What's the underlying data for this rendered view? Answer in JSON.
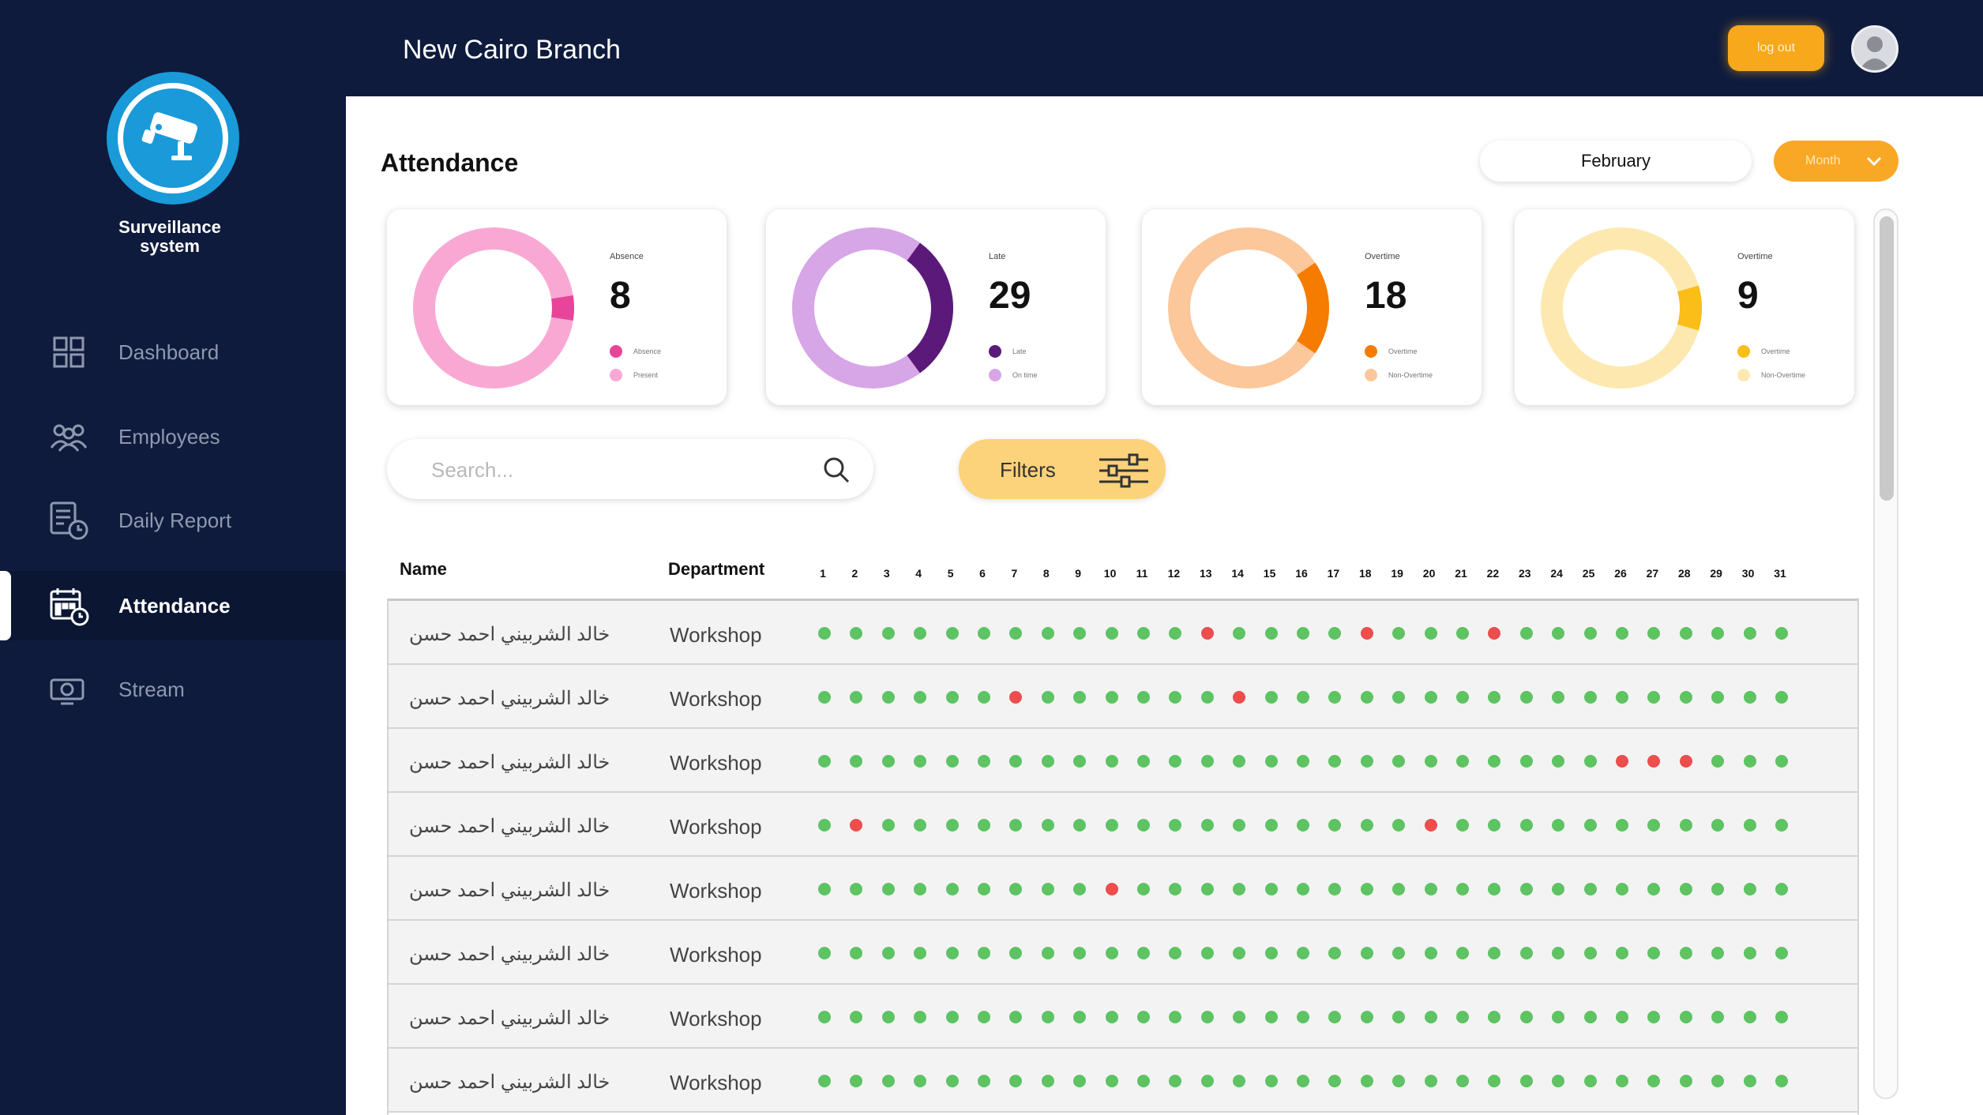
{
  "brand": {
    "name": "Surveillance system",
    "logo_icon": "security-camera-icon"
  },
  "sidebar": {
    "items": [
      {
        "label": "Dashboard",
        "icon": "dashboard-icon",
        "active": false
      },
      {
        "label": "Employees",
        "icon": "employees-icon",
        "active": false
      },
      {
        "label": "Daily Report",
        "icon": "daily-report-icon",
        "active": false
      },
      {
        "label": "Attendance",
        "icon": "attendance-calendar-icon",
        "active": true
      },
      {
        "label": "Stream",
        "icon": "stream-camera-icon",
        "active": false
      }
    ]
  },
  "header": {
    "branch": "New Cairo Branch",
    "logout_label": "log out",
    "avatar_icon": "user-avatar-icon"
  },
  "main": {
    "title": "Attendance",
    "month": "February",
    "period_label": "Month",
    "stats": [
      {
        "label": "Absence",
        "value": "8",
        "color": "#e8449a",
        "track": "#f9a8d4",
        "fraction": 0.05,
        "legend": [
          "Absence",
          "Present"
        ]
      },
      {
        "label": "Late",
        "value": "29",
        "color": "#5b1a7a",
        "track": "#d7a6e6",
        "fraction": 0.3,
        "legend": [
          "Late",
          "On time"
        ]
      },
      {
        "label": "Overtime",
        "value": "18",
        "color": "#f57c00",
        "track": "#fcc79a",
        "fraction": 0.19,
        "legend": [
          "Overtime",
          "Non-Overtime"
        ]
      },
      {
        "label": "Overtime",
        "value": "9",
        "color": "#fbbd17",
        "track": "#fde9b0",
        "fraction": 0.09,
        "legend": [
          "Overtime",
          "Non-Overtime"
        ]
      }
    ],
    "search_placeholder": "Search...",
    "filters_label": "Filters",
    "table": {
      "headers": {
        "name": "Name",
        "department": "Department"
      },
      "days": [
        "1",
        "2",
        "3",
        "4",
        "5",
        "6",
        "7",
        "8",
        "9",
        "10",
        "11",
        "12",
        "13",
        "14",
        "15",
        "16",
        "17",
        "18",
        "19",
        "20",
        "21",
        "22",
        "23",
        "24",
        "25",
        "26",
        "27",
        "28",
        "29",
        "30",
        "31"
      ],
      "rows": [
        {
          "name": "خالد الشربيني احمد حسن",
          "department": "Workshop",
          "absent_days": [
            13,
            18,
            22
          ]
        },
        {
          "name": "خالد الشربيني احمد حسن",
          "department": "Workshop",
          "absent_days": [
            7,
            14
          ]
        },
        {
          "name": "خالد الشربيني احمد حسن",
          "department": "Workshop",
          "absent_days": [
            26,
            27,
            28
          ]
        },
        {
          "name": "خالد الشربيني احمد حسن",
          "department": "Workshop",
          "absent_days": [
            2,
            20
          ]
        },
        {
          "name": "خالد الشربيني احمد حسن",
          "department": "Workshop",
          "absent_days": [
            10
          ]
        },
        {
          "name": "خالد الشربيني احمد حسن",
          "department": "Workshop",
          "absent_days": []
        },
        {
          "name": "خالد الشربيني احمد حسن",
          "department": "Workshop",
          "absent_days": []
        },
        {
          "name": "خالد الشربيني احمد حسن",
          "department": "Workshop",
          "absent_days": []
        }
      ],
      "colors": {
        "present": "#5ec362",
        "absent": "#ee4d4d"
      }
    }
  }
}
